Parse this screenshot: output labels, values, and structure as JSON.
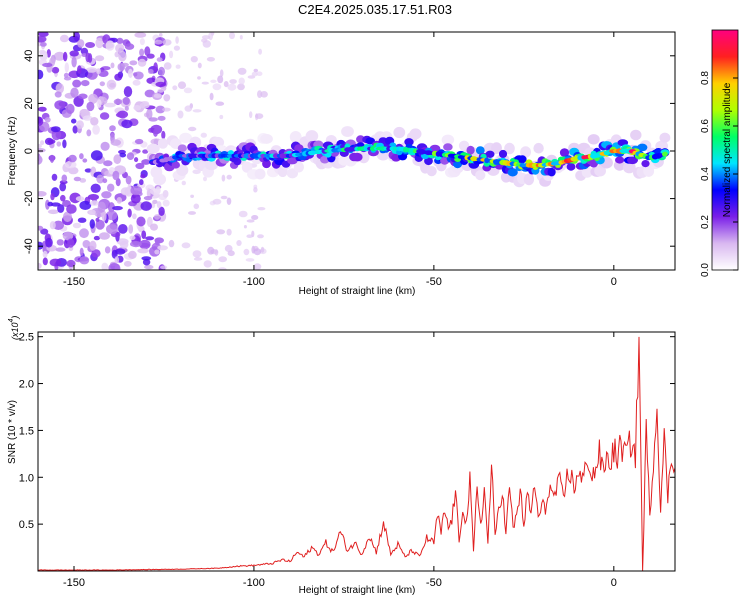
{
  "title": "C2E4.2025.035.17.51.R03",
  "chart_data": [
    {
      "type": "heatmap",
      "xlabel": "Height of straight line (km)",
      "ylabel": "Frequency (Hz)",
      "xlim": [
        -160,
        17
      ],
      "ylim": [
        -50,
        50
      ],
      "x_ticks": [
        "-150",
        "-100",
        "-50",
        "0"
      ],
      "y_ticks": [
        "-40",
        "-20",
        "0",
        "20",
        "40"
      ],
      "colorbar": {
        "label": "Normalized spectral amplitude",
        "range": [
          0,
          1
        ],
        "ticks": [
          "0.0",
          "0.2",
          "0.4",
          "0.6",
          "0.8"
        ],
        "colors": [
          "#ffffff",
          "#d9b8f0",
          "#7a1fe8",
          "#0000ff",
          "#00e5ff",
          "#00ff66",
          "#b0ff00",
          "#ffd000",
          "#ff2020",
          "#ff007f"
        ]
      },
      "noise_region_x": [
        -160,
        -127
      ],
      "trace": {
        "x": [
          -128,
          -120,
          -110,
          -100,
          -90,
          -80,
          -70,
          -60,
          -50,
          -45,
          -40,
          -35,
          -30,
          -25,
          -20,
          -15,
          -10,
          -5,
          0,
          5,
          10,
          15
        ],
        "frequency": [
          -5,
          -2,
          -2,
          -2,
          -2,
          0,
          1,
          1,
          -1,
          -2,
          -3,
          -4,
          -5,
          -6,
          -6,
          -5,
          -3,
          -2,
          0,
          0,
          -3,
          -1
        ],
        "amplitude": [
          0.3,
          0.35,
          0.4,
          0.4,
          0.45,
          0.5,
          0.55,
          0.55,
          0.6,
          0.65,
          0.7,
          0.75,
          0.75,
          0.8,
          0.85,
          0.85,
          0.85,
          0.9,
          0.95,
          0.9,
          0.7,
          0.6
        ]
      }
    },
    {
      "type": "line",
      "xlabel": "Height of straight line (km)",
      "ylabel": "SNR (10 * v/v)",
      "y_multiplier": "(x10",
      "y_multiplier_exp": "4",
      "xlim": [
        -160,
        17
      ],
      "ylim": [
        0,
        2.55
      ],
      "x_ticks": [
        "-150",
        "-100",
        "-50",
        "0"
      ],
      "y_ticks": [
        "0.5",
        "1.0",
        "1.5",
        "2.0",
        "2.5"
      ],
      "color": "#e02020",
      "series": [
        {
          "x": [
            -160,
            -140,
            -120,
            -110,
            -105,
            -100,
            -95,
            -92,
            -90,
            -88,
            -86,
            -84,
            -82,
            -80,
            -78,
            -76,
            -74,
            -72,
            -70,
            -68,
            -66,
            -64,
            -62,
            -60,
            -58,
            -56,
            -54,
            -52,
            -50,
            -49,
            -48,
            -47,
            -46,
            -45,
            -44,
            -43,
            -42,
            -41,
            -40,
            -39,
            -38,
            -37,
            -36,
            -35,
            -34,
            -33,
            -32,
            -31,
            -30,
            -29,
            -28,
            -27,
            -26,
            -25,
            -24,
            -23,
            -22,
            -21,
            -20,
            -19,
            -18,
            -17,
            -16,
            -15,
            -14,
            -13,
            -12,
            -11,
            -10,
            -9,
            -8,
            -7,
            -6,
            -5,
            -4,
            -3,
            -2,
            -1,
            0,
            1,
            2,
            3,
            4,
            5,
            6,
            7,
            8,
            9,
            10,
            11,
            12,
            13,
            14,
            15,
            16,
            17
          ],
          "y": [
            0.01,
            0.01,
            0.02,
            0.03,
            0.05,
            0.06,
            0.08,
            0.12,
            0.1,
            0.2,
            0.15,
            0.25,
            0.18,
            0.3,
            0.2,
            0.42,
            0.22,
            0.3,
            0.18,
            0.38,
            0.2,
            0.52,
            0.18,
            0.28,
            0.15,
            0.22,
            0.15,
            0.35,
            0.3,
            0.6,
            0.4,
            0.65,
            0.45,
            0.55,
            0.85,
            0.3,
            0.7,
            0.5,
            0.95,
            0.2,
            0.9,
            0.5,
            0.85,
            0.3,
            1.12,
            0.35,
            0.7,
            0.85,
            0.4,
            0.9,
            0.45,
            0.6,
            0.85,
            0.5,
            0.8,
            0.6,
            0.95,
            0.55,
            0.7,
            0.65,
            0.9,
            0.8,
            0.85,
            0.95,
            0.75,
            1.0,
            1.05,
            0.85,
            1.1,
            0.95,
            1.05,
            1.2,
            1.0,
            1.1,
            1.25,
            1.05,
            1.2,
            1.15,
            1.3,
            1.2,
            1.35,
            1.25,
            1.3,
            1.4,
            1.2,
            2.5,
            0.0,
            1.5,
            0.6,
            1.2,
            1.75,
            0.7,
            1.4,
            0.8,
            1.2,
            1.1
          ]
        }
      ]
    }
  ]
}
